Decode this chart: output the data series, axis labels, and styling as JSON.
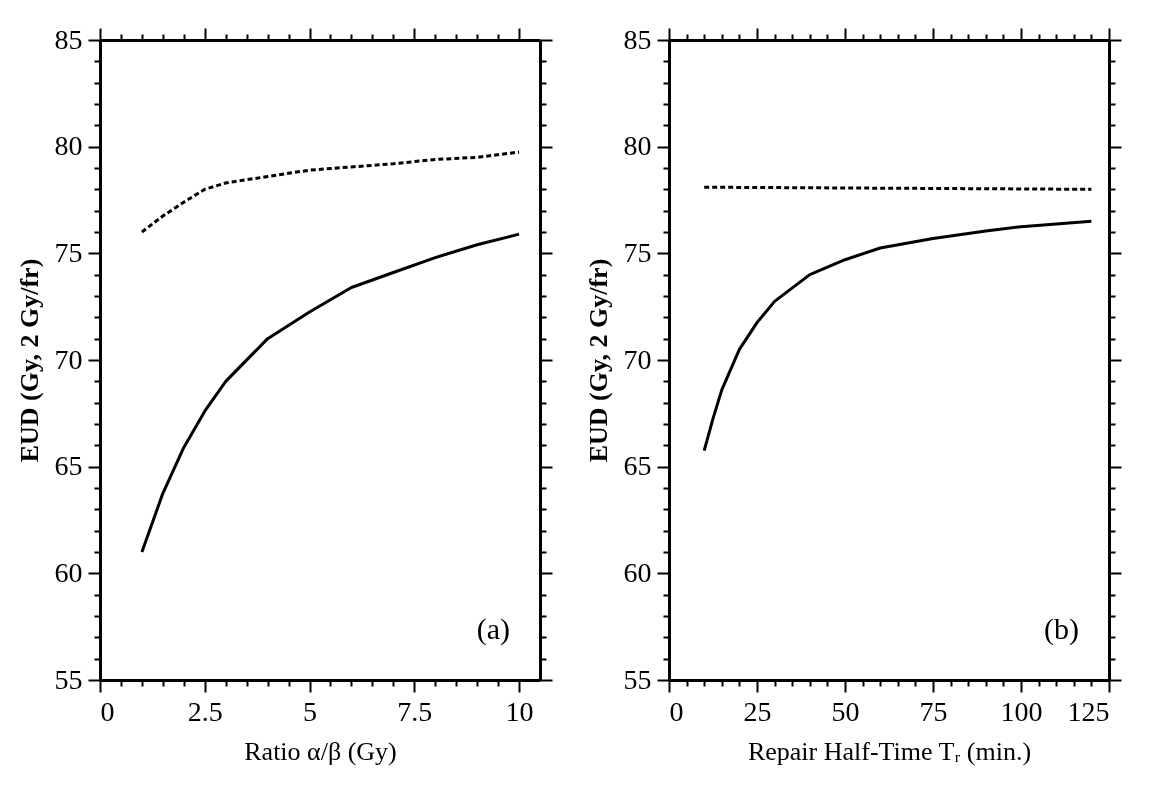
{
  "chart_data": [
    {
      "type": "line",
      "xlabel": "Ratio α/β (Gy)",
      "ylabel": "EUD (Gy, 2 Gy/fr)",
      "annotations": [
        "(a)"
      ],
      "grid": false,
      "marker": "none",
      "x": [
        1,
        1.5,
        2,
        2.5,
        3,
        4,
        5,
        6,
        7,
        8,
        9,
        10
      ],
      "series": [
        {
          "color": "#000000",
          "line_style": "solid",
          "values": [
            61.0,
            63.75,
            65.9,
            67.6,
            69.0,
            71.0,
            72.25,
            73.4,
            74.1,
            74.8,
            75.4,
            75.9
          ]
        },
        {
          "color": "#000000",
          "line_style": "dashed",
          "values": [
            76.0,
            76.75,
            77.4,
            78.0,
            78.3,
            78.6,
            78.9,
            79.05,
            79.2,
            79.4,
            79.5,
            79.75
          ]
        }
      ],
      "xlim": [
        0,
        10.5
      ],
      "ylim": [
        55,
        85
      ],
      "xticks": [
        0,
        {
          "value": 0.5,
          "label": null
        },
        {
          "value": 1,
          "label": null
        },
        {
          "value": 1.5,
          "label": null
        },
        {
          "value": 2,
          "label": null
        },
        2.5,
        {
          "value": 3,
          "label": null
        },
        {
          "value": 3.5,
          "label": null
        },
        {
          "value": 4,
          "label": null
        },
        {
          "value": 4.5,
          "label": null
        },
        5,
        {
          "value": 5.5,
          "label": null
        },
        {
          "value": 6,
          "label": null
        },
        {
          "value": 6.5,
          "label": null
        },
        {
          "value": 7,
          "label": null
        },
        7.5,
        {
          "value": 8,
          "label": null
        },
        {
          "value": 8.5,
          "label": null
        },
        {
          "value": 9,
          "label": null
        },
        {
          "value": 9.5,
          "label": null
        },
        10
      ],
      "yticks": [
        55,
        {
          "value": 56,
          "label": null
        },
        {
          "value": 57,
          "label": null
        },
        {
          "value": 58,
          "label": null
        },
        {
          "value": 59,
          "label": null
        },
        60,
        {
          "value": 61,
          "label": null
        },
        {
          "value": 62,
          "label": null
        },
        {
          "value": 63,
          "label": null
        },
        {
          "value": 64,
          "label": null
        },
        65,
        {
          "value": 66,
          "label": null
        },
        {
          "value": 67,
          "label": null
        },
        {
          "value": 68,
          "label": null
        },
        {
          "value": 69,
          "label": null
        },
        70,
        {
          "value": 71,
          "label": null
        },
        {
          "value": 72,
          "label": null
        },
        {
          "value": 73,
          "label": null
        },
        {
          "value": 74,
          "label": null
        },
        75,
        {
          "value": 76,
          "label": null
        },
        {
          "value": 77,
          "label": null
        },
        {
          "value": 78,
          "label": null
        },
        {
          "value": 79,
          "label": null
        },
        80,
        {
          "value": 81,
          "label": null
        },
        {
          "value": 82,
          "label": null
        },
        {
          "value": 83,
          "label": null
        },
        {
          "value": 84,
          "label": null
        },
        85
      ]
    },
    {
      "type": "line",
      "xlabel": "Repair Half-Time Tᵣ (min.)",
      "ylabel": "EUD (Gy, 2 Gy/fr)",
      "annotations": [
        "(b)"
      ],
      "grid": false,
      "marker": "none",
      "series": [
        {
          "color": "#000000",
          "line_style": "solid",
          "x": [
            10,
            12.5,
            15,
            20,
            25,
            30,
            40,
            50,
            60,
            75,
            90,
            100,
            120
          ],
          "values": [
            65.75,
            67.25,
            68.6,
            70.5,
            71.75,
            72.75,
            74.0,
            74.7,
            75.25,
            75.7,
            76.05,
            76.25,
            76.5
          ]
        },
        {
          "color": "#000000",
          "line_style": "dashed",
          "x": [
            10,
            120
          ],
          "values": [
            78.1,
            78.0
          ]
        }
      ],
      "xlim": [
        0,
        125
      ],
      "ylim": [
        55,
        85
      ],
      "xticks": [
        0,
        {
          "value": 5,
          "label": null
        },
        {
          "value": 10,
          "label": null
        },
        {
          "value": 15,
          "label": null
        },
        {
          "value": 20,
          "label": null
        },
        25,
        {
          "value": 30,
          "label": null
        },
        {
          "value": 35,
          "label": null
        },
        {
          "value": 40,
          "label": null
        },
        {
          "value": 45,
          "label": null
        },
        50,
        {
          "value": 55,
          "label": null
        },
        {
          "value": 60,
          "label": null
        },
        {
          "value": 65,
          "label": null
        },
        {
          "value": 70,
          "label": null
        },
        75,
        {
          "value": 80,
          "label": null
        },
        {
          "value": 85,
          "label": null
        },
        {
          "value": 90,
          "label": null
        },
        {
          "value": 95,
          "label": null
        },
        100,
        {
          "value": 105,
          "label": null
        },
        {
          "value": 110,
          "label": null
        },
        {
          "value": 115,
          "label": null
        },
        {
          "value": 120,
          "label": null
        },
        125
      ],
      "yticks": [
        55,
        {
          "value": 56,
          "label": null
        },
        {
          "value": 57,
          "label": null
        },
        {
          "value": 58,
          "label": null
        },
        {
          "value": 59,
          "label": null
        },
        60,
        {
          "value": 61,
          "label": null
        },
        {
          "value": 62,
          "label": null
        },
        {
          "value": 63,
          "label": null
        },
        {
          "value": 64,
          "label": null
        },
        65,
        {
          "value": 66,
          "label": null
        },
        {
          "value": 67,
          "label": null
        },
        {
          "value": 68,
          "label": null
        },
        {
          "value": 69,
          "label": null
        },
        70,
        {
          "value": 71,
          "label": null
        },
        {
          "value": 72,
          "label": null
        },
        {
          "value": 73,
          "label": null
        },
        {
          "value": 74,
          "label": null
        },
        75,
        {
          "value": 76,
          "label": null
        },
        {
          "value": 77,
          "label": null
        },
        {
          "value": 78,
          "label": null
        },
        {
          "value": 79,
          "label": null
        },
        80,
        {
          "value": 81,
          "label": null
        },
        {
          "value": 82,
          "label": null
        },
        {
          "value": 83,
          "label": null
        },
        {
          "value": 84,
          "label": null
        },
        85
      ]
    }
  ]
}
